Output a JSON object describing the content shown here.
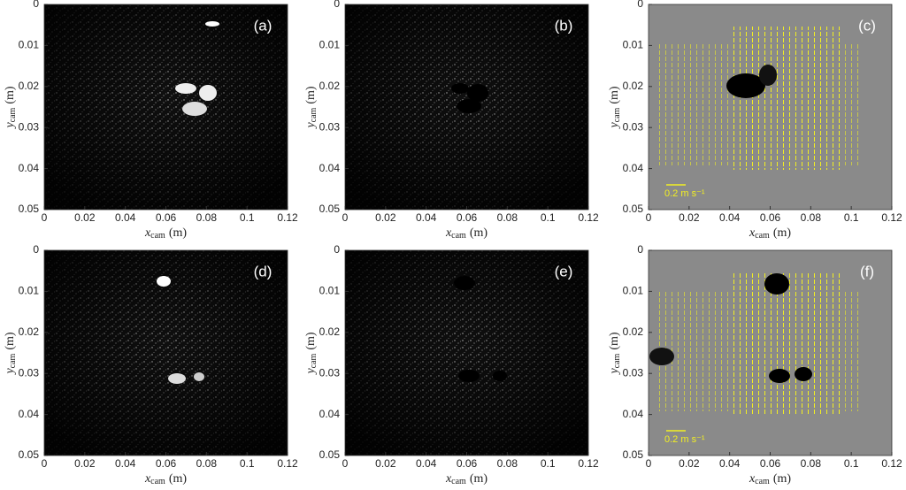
{
  "chart_data": [
    {
      "type": "image",
      "panel_label": "(a)",
      "x_label": {
        "symbol": "x",
        "subscript": "cam",
        "unit": "(m)"
      },
      "y_label": {
        "symbol": "y",
        "subscript": "cam",
        "unit": "(m)"
      },
      "xlim": [
        0,
        0.12
      ],
      "xticks": [
        0,
        0.02,
        0.04,
        0.06,
        0.08,
        0.1,
        0.12
      ],
      "ylim": [
        0.05,
        0
      ],
      "yticks": [
        0,
        0.01,
        0.02,
        0.03,
        0.04,
        0.05
      ]
    },
    {
      "type": "image",
      "panel_label": "(b)",
      "x_label": {
        "symbol": "x",
        "subscript": "cam",
        "unit": "(m)"
      },
      "y_label": {
        "symbol": "y",
        "subscript": "cam",
        "unit": "(m)"
      },
      "xlim": [
        0,
        0.12
      ],
      "xticks": [
        0,
        0.02,
        0.04,
        0.06,
        0.08,
        0.1,
        0.12
      ],
      "ylim": [
        0.05,
        0
      ],
      "yticks": [
        0,
        0.01,
        0.02,
        0.03,
        0.04,
        0.05
      ]
    },
    {
      "type": "image",
      "panel_label": "(c)",
      "scale_label": "0.2 m s⁻¹",
      "x_label": {
        "symbol": "x",
        "subscript": "cam",
        "unit": "(m)"
      },
      "y_label": {
        "symbol": "y",
        "subscript": "cam",
        "unit": "(m)"
      },
      "xlim": [
        0,
        0.12
      ],
      "xticks": [
        0,
        0.02,
        0.04,
        0.06,
        0.08,
        0.1,
        0.12
      ],
      "ylim": [
        0.05,
        0
      ],
      "yticks": [
        0,
        0.01,
        0.02,
        0.03,
        0.04,
        0.05
      ]
    },
    {
      "type": "image",
      "panel_label": "(d)",
      "x_label": {
        "symbol": "x",
        "subscript": "cam",
        "unit": "(m)"
      },
      "y_label": {
        "symbol": "y",
        "subscript": "cam",
        "unit": "(m)"
      },
      "xlim": [
        0,
        0.12
      ],
      "xticks": [
        0,
        0.02,
        0.04,
        0.06,
        0.08,
        0.1,
        0.12
      ],
      "ylim": [
        0.05,
        0
      ],
      "yticks": [
        0,
        0.01,
        0.02,
        0.03,
        0.04,
        0.05
      ]
    },
    {
      "type": "image",
      "panel_label": "(e)",
      "x_label": {
        "symbol": "x",
        "subscript": "cam",
        "unit": "(m)"
      },
      "y_label": {
        "symbol": "y",
        "subscript": "cam",
        "unit": "(m)"
      },
      "xlim": [
        0,
        0.12
      ],
      "xticks": [
        0,
        0.02,
        0.04,
        0.06,
        0.08,
        0.1,
        0.12
      ],
      "ylim": [
        0.05,
        0
      ],
      "yticks": [
        0,
        0.01,
        0.02,
        0.03,
        0.04,
        0.05
      ]
    },
    {
      "type": "image",
      "panel_label": "(f)",
      "scale_label": "0.2 m s⁻¹",
      "x_label": {
        "symbol": "x",
        "subscript": "cam",
        "unit": "(m)"
      },
      "y_label": {
        "symbol": "y",
        "subscript": "cam",
        "unit": "(m)"
      },
      "xlim": [
        0,
        0.12
      ],
      "xticks": [
        0,
        0.02,
        0.04,
        0.06,
        0.08,
        0.1,
        0.12
      ],
      "ylim": [
        0.05,
        0
      ],
      "yticks": [
        0,
        0.01,
        0.02,
        0.03,
        0.04,
        0.05
      ]
    }
  ]
}
